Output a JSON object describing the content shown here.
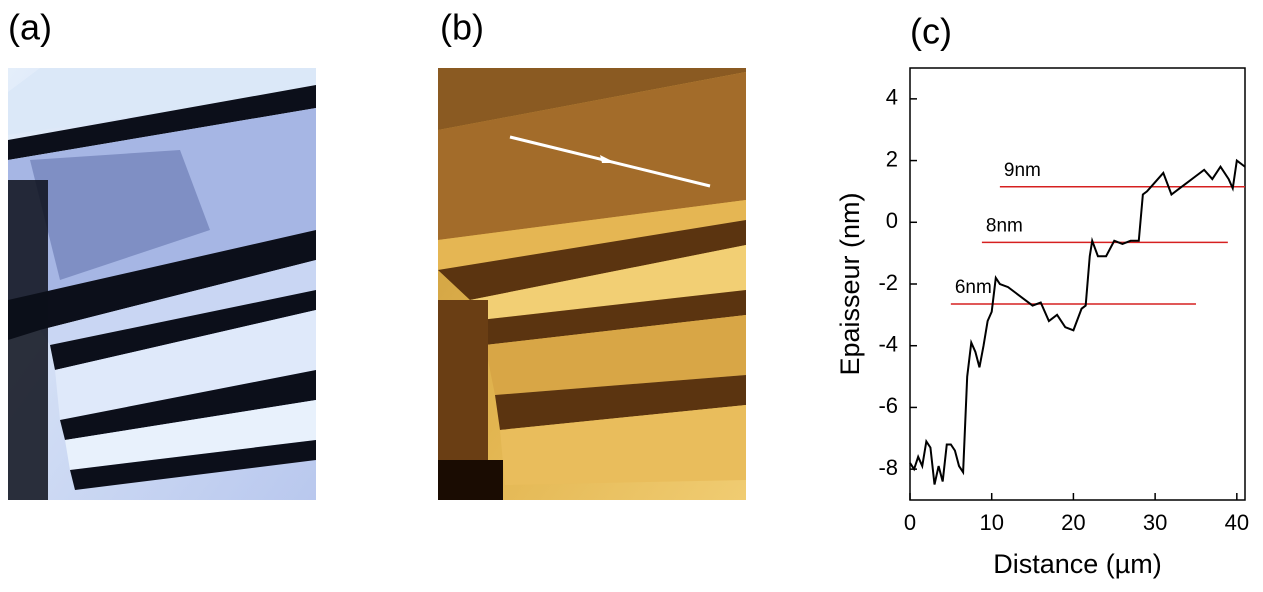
{
  "panels": [
    "(a)",
    "(b)",
    "(c)"
  ],
  "chart_data": {
    "type": "line",
    "xlabel": "Distance (µm)",
    "ylabel": "Epaisseur (nm)",
    "xlim": [
      0,
      41
    ],
    "ylim": [
      -9,
      5
    ],
    "xticks": [
      0,
      10,
      20,
      30,
      40
    ],
    "yticks": [
      -8,
      -6,
      -4,
      -2,
      0,
      2,
      4
    ],
    "x": [
      0,
      0.5,
      1,
      1.5,
      2,
      2.5,
      3,
      3.5,
      4,
      4.5,
      5,
      5.5,
      6,
      6.5,
      7,
      7.5,
      8,
      8.5,
      9,
      9.5,
      10,
      10.5,
      11,
      12,
      13,
      14,
      15,
      16,
      17,
      18,
      19,
      20,
      21,
      21.5,
      22,
      22.3,
      23,
      24,
      25,
      26,
      27,
      28,
      28.5,
      29,
      30,
      31,
      32,
      33,
      34,
      35,
      36,
      37,
      38,
      39,
      39.5,
      40,
      41
    ],
    "series": [
      {
        "color": "#000000",
        "values": [
          -7.8,
          -8.0,
          -7.6,
          -7.9,
          -7.1,
          -7.3,
          -8.5,
          -7.9,
          -8.4,
          -7.2,
          -7.2,
          -7.4,
          -7.9,
          -8.1,
          -5.0,
          -3.9,
          -4.2,
          -4.7,
          -4.0,
          -3.2,
          -2.9,
          -1.8,
          -2.0,
          -2.1,
          -2.3,
          -2.5,
          -2.7,
          -2.6,
          -3.2,
          -3.0,
          -3.4,
          -3.5,
          -2.8,
          -2.7,
          -1.1,
          -0.6,
          -1.1,
          -1.1,
          -0.6,
          -0.7,
          -0.6,
          -0.6,
          0.9,
          1.0,
          1.3,
          1.6,
          0.9,
          1.1,
          1.3,
          1.5,
          1.7,
          1.4,
          1.8,
          1.4,
          1.1,
          2.0,
          1.8
        ]
      }
    ],
    "reference_color": "#d62020",
    "reference_lines": [
      {
        "label": "6nm",
        "y": -2.65,
        "x": [
          5,
          35
        ]
      },
      {
        "label": "8nm",
        "y": -0.65,
        "x": [
          8.8,
          38.9
        ]
      },
      {
        "label": "9nm",
        "y": 1.15,
        "x": [
          11,
          41
        ]
      }
    ]
  }
}
